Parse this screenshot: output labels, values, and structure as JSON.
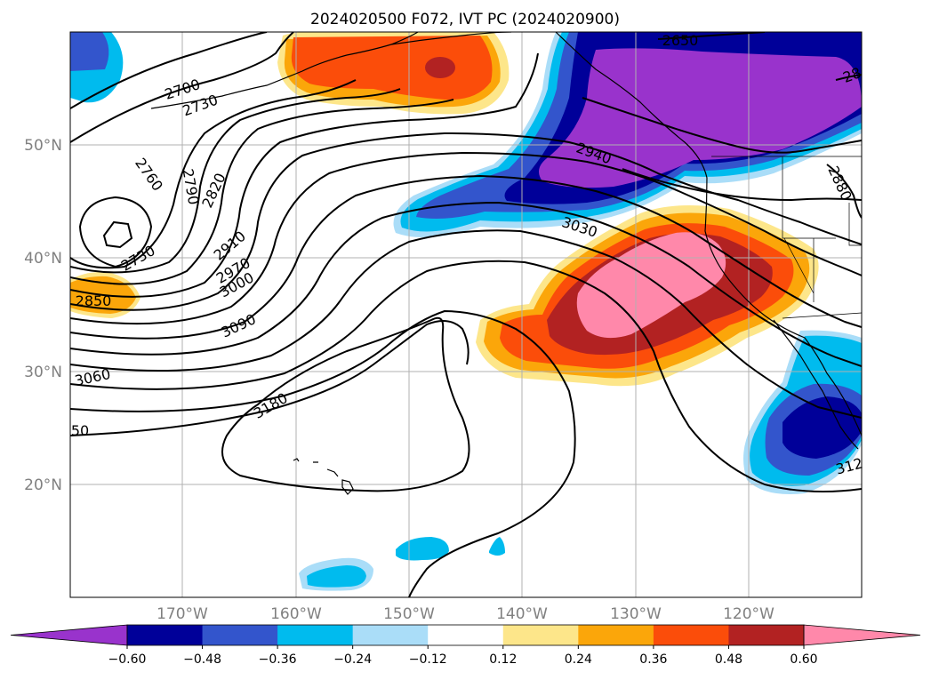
{
  "title": "2024020500 F072, IVT PC (2024020900)",
  "lon_labels": [
    "170°W",
    "160°W",
    "150°W",
    "140°W",
    "130°W",
    "120°W"
  ],
  "lat_labels": [
    "50°N",
    "40°N",
    "30°N",
    "20°N"
  ],
  "colorbar": {
    "colors": [
      "#9933cc",
      "#000099",
      "#3355cc",
      "#00bbee",
      "#aaddf8",
      "#ffffff",
      "#fde68a",
      "#fba60a",
      "#fb4d0a",
      "#b22222",
      "#ff88aa"
    ],
    "ticks": [
      "−0.60",
      "−0.48",
      "−0.36",
      "−0.24",
      "−0.12",
      "0.12",
      "0.24",
      "0.36",
      "0.48",
      "0.60"
    ]
  },
  "contour_labels": [
    "2650",
    "2700",
    "2730",
    "2760",
    "2790",
    "2820",
    "2850",
    "2880",
    "2910",
    "2940",
    "2970",
    "3000",
    "3030",
    "3060",
    "3090",
    "3180",
    "2730",
    "2850",
    "50",
    "312",
    "28"
  ]
}
